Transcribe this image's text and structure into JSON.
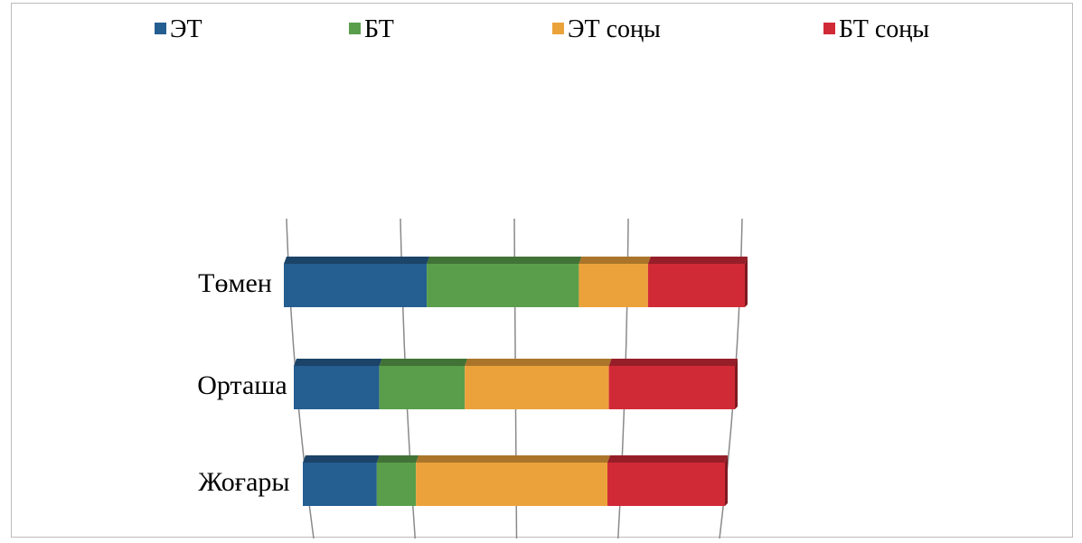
{
  "chart_data": {
    "type": "bar",
    "orientation": "horizontal",
    "stacking": "percent",
    "style": "3d",
    "grid": true,
    "legend_position": "top",
    "title": "",
    "xlabel": "",
    "ylabel": "",
    "xlim": [
      0,
      100
    ],
    "categories": [
      "Төмен",
      "Орташа",
      "Жоғары"
    ],
    "series": [
      {
        "name": "ЭТ",
        "color": "#255e91",
        "values": [
          31,
          19,
          17
        ]
      },
      {
        "name": "БТ",
        "color": "#5a9e4b",
        "values": [
          33,
          19,
          9
        ]
      },
      {
        "name": "ЭТ соңы",
        "color": "#eca23b",
        "values": [
          15,
          32,
          44
        ]
      },
      {
        "name": "БТ соңы",
        "color": "#d12a37",
        "values": [
          21,
          28,
          27
        ]
      }
    ]
  }
}
